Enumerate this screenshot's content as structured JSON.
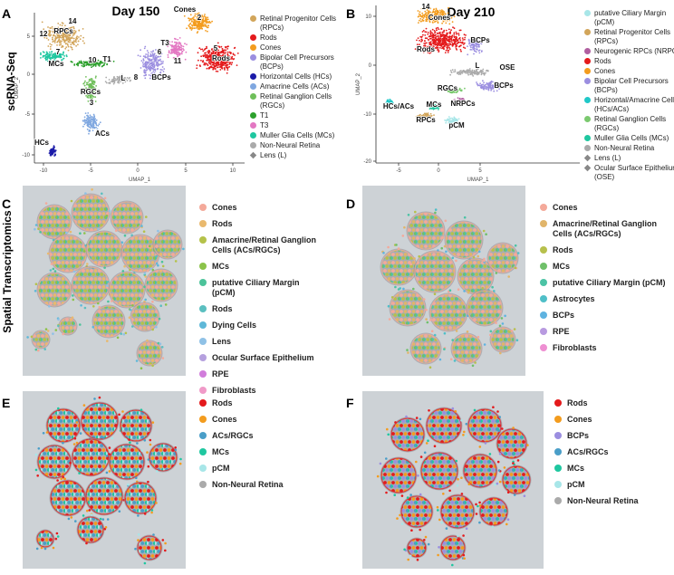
{
  "row_labels": {
    "top": "scRNA-Seq",
    "bottom": "Spatial Transcriptomics"
  },
  "panels": [
    {
      "letter": "A",
      "title": "Day 150",
      "x_label": "UMAP_1",
      "y_label": "UMAP_2",
      "xticks": [
        "-10",
        "-5",
        "0",
        "5",
        "10"
      ],
      "yticks": [
        "5",
        "0",
        "-5",
        "-10"
      ],
      "legend": [
        {
          "label": "Retinal Progenitor Cells (RPCs)",
          "color": "#d2a55a"
        },
        {
          "label": "Rods",
          "color": "#e41a1c"
        },
        {
          "label": "Cones",
          "color": "#f39c1e"
        },
        {
          "label": "Bipolar Cell Precursors (BCPs)",
          "color": "#9b8ee0"
        },
        {
          "label": "Horizontal Cells (HCs)",
          "color": "#1a1aa8"
        },
        {
          "label": "Amacrine Cells (ACs)",
          "color": "#7fa7e0"
        },
        {
          "label": "Retinal Ganglion Cells (RGCs)",
          "color": "#6fbf5a"
        },
        {
          "label": "T1",
          "color": "#2ca02c"
        },
        {
          "label": "T3",
          "color": "#e377c2"
        },
        {
          "label": "Muller Glia Cells (MCs)",
          "color": "#1fc7a0"
        },
        {
          "label": "Non-Neural Retina",
          "color": "#aaaaaa"
        },
        {
          "label": "Lens (L)",
          "color": "#888888",
          "marker": "diamond"
        }
      ],
      "cluster_labels": [
        "RPCs",
        "12",
        "14",
        "7",
        "MCs",
        "10",
        "T1",
        "RGCs",
        "3",
        "ACs",
        "HCs",
        "L",
        "8",
        "BCPs",
        "T3",
        "6",
        "11",
        "Cones",
        "2",
        "Rods",
        "5"
      ]
    },
    {
      "letter": "B",
      "title": "Day 210",
      "x_label": "UMAP_1",
      "y_label": "UMAP_2",
      "xticks": [
        "-5",
        "0",
        "5"
      ],
      "yticks": [
        "10",
        "0",
        "-10",
        "-20"
      ],
      "legend": [
        {
          "label": "putative Ciliary Margin (pCM)",
          "color": "#a8e6e8"
        },
        {
          "label": "Retinal Progenitor Cells (RPCs)",
          "color": "#d2a55a"
        },
        {
          "label": "Neurogenic RPCs (NRPCs)",
          "color": "#b05fa0"
        },
        {
          "label": "Rods",
          "color": "#e41a1c"
        },
        {
          "label": "Cones",
          "color": "#f39c1e"
        },
        {
          "label": "Bipolar Cell Precursors (BCPs)",
          "color": "#9b8ee0"
        },
        {
          "label": "Horizontal/Amacrine Cells (HCs/ACs)",
          "color": "#20c8c8"
        },
        {
          "label": "Retinal Ganglion Cells (RGCs)",
          "color": "#7bc96f"
        },
        {
          "label": "Muller Glia Cells (MCs)",
          "color": "#1fc7a0"
        },
        {
          "label": "Non-Neural Retina",
          "color": "#aaaaaa"
        },
        {
          "label": "Lens (L)",
          "color": "#888888",
          "marker": "diamond"
        },
        {
          "label": "Ocular Surface Epithelium (OSE)",
          "color": "#888888",
          "marker": "diamond"
        }
      ],
      "cluster_labels": [
        "Cones",
        "14",
        "Rods",
        "BCPs",
        "L",
        "OSE",
        "BCPs",
        "RGCs",
        "MCs",
        "NRPCs",
        "HCs/ACs",
        "RPCs",
        "pCM"
      ]
    },
    {
      "letter": "C",
      "legend": [
        {
          "label": "Cones",
          "color": "#f4a99a"
        },
        {
          "label": "Rods",
          "color": "#e9b96e"
        },
        {
          "label": "Amacrine/Retinal Ganglion Cells (ACs/RGCs)",
          "color": "#b5c24a"
        },
        {
          "label": "MCs",
          "color": "#8bc34a"
        },
        {
          "label": "putative Ciliary Margin (pCM)",
          "color": "#4cc39a"
        },
        {
          "label": "Rods",
          "color": "#5bbfc0"
        },
        {
          "label": "Dying Cells",
          "color": "#5fb8d8"
        },
        {
          "label": "Lens",
          "color": "#8fc1e6"
        },
        {
          "label": "Ocular Surface Epithelium",
          "color": "#b5a0de"
        },
        {
          "label": "RPE",
          "color": "#d17ddb"
        },
        {
          "label": "Fibroblasts",
          "color": "#f09ac8"
        }
      ]
    },
    {
      "letter": "D",
      "legend": [
        {
          "label": "Cones",
          "color": "#f4a99a"
        },
        {
          "label": "Amacrine/Retinal Ganglion Cells (ACs/RGCs)",
          "color": "#e1b56a"
        },
        {
          "label": "Rods",
          "color": "#b7c04c"
        },
        {
          "label": "MCs",
          "color": "#6fc06a"
        },
        {
          "label": "putative Ciliary Margin (pCM)",
          "color": "#4cc3a5"
        },
        {
          "label": "Astrocytes",
          "color": "#4fbfc8"
        },
        {
          "label": "BCPs",
          "color": "#5fb3e0"
        },
        {
          "label": "RPE",
          "color": "#b89ae0"
        },
        {
          "label": "Fibroblasts",
          "color": "#ee8fd2"
        }
      ]
    },
    {
      "letter": "E",
      "legend": [
        {
          "label": "Rods",
          "color": "#e41a1c"
        },
        {
          "label": "Cones",
          "color": "#f39c1e"
        },
        {
          "label": "ACs/RGCs",
          "color": "#4a9ec8"
        },
        {
          "label": "MCs",
          "color": "#1fc7a0"
        },
        {
          "label": "pCM",
          "color": "#a8e6e8"
        },
        {
          "label": "Non-Neural Retina",
          "color": "#aaaaaa"
        }
      ]
    },
    {
      "letter": "F",
      "legend": [
        {
          "label": "Rods",
          "color": "#e41a1c"
        },
        {
          "label": "Cones",
          "color": "#f39c1e"
        },
        {
          "label": "BCPs",
          "color": "#9b8ee0"
        },
        {
          "label": "ACs/RGCs",
          "color": "#4a9ec8"
        },
        {
          "label": "MCs",
          "color": "#1fc7a0"
        },
        {
          "label": "pCM",
          "color": "#a8e6e8"
        },
        {
          "label": "Non-Neural Retina",
          "color": "#aaaaaa"
        }
      ]
    }
  ]
}
